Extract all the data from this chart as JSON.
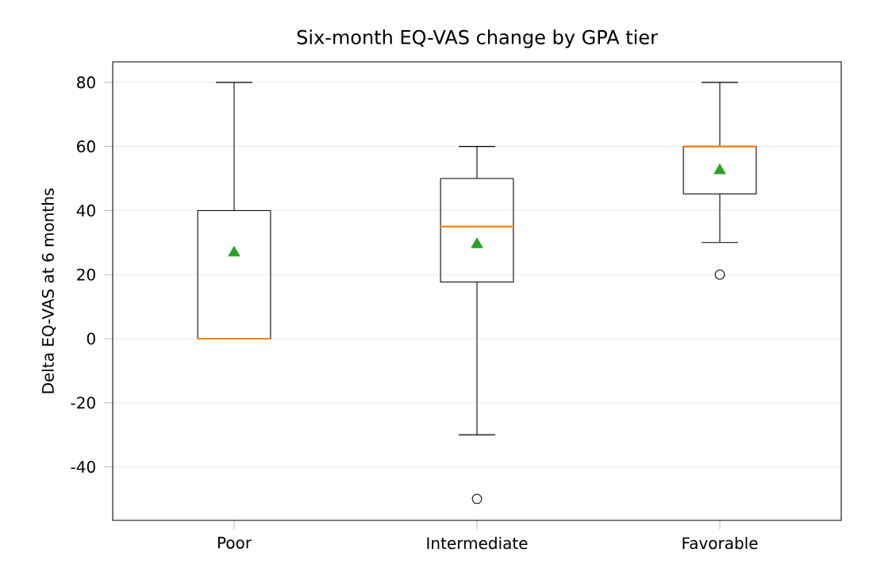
{
  "chart_data": {
    "type": "box",
    "title": "Six-month EQ-VAS change by GPA tier",
    "ylabel": "Delta EQ-VAS at 6 months",
    "categories": [
      "Poor",
      "Intermediate",
      "Favorable"
    ],
    "boxes": [
      {
        "low": 0,
        "q1": 0,
        "median": 0,
        "q3": 40,
        "high": 80,
        "mean": 26.8
      },
      {
        "low": -30,
        "q1": 17.7,
        "median": 35,
        "q3": 50,
        "high": 60,
        "mean": 29.4,
        "outliers": [
          -50
        ]
      },
      {
        "low": 30,
        "q1": 45.2,
        "median": 60,
        "q3": 60,
        "high": 80,
        "mean": 52.5,
        "outliers": [
          20
        ]
      }
    ],
    "ylim": [
      -56.7,
      86.4
    ],
    "yticks": [
      -40,
      -20,
      0,
      20,
      40,
      60,
      80
    ],
    "grid": "y"
  }
}
